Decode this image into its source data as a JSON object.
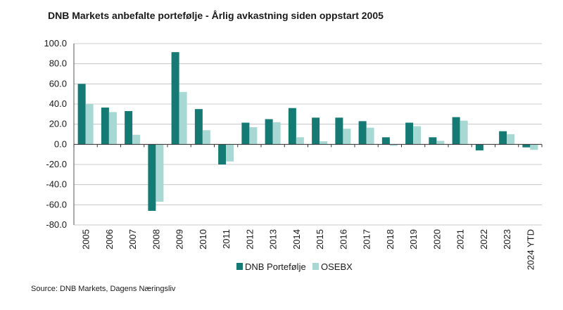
{
  "title": "DNB Markets anbefalte portefølje - Årlig avkastning siden oppstart 2005",
  "source": "Source: DNB Markets, Dagens Næringsliv",
  "chart_data": {
    "type": "bar",
    "title": "DNB Markets anbefalte portefølje - Årlig avkastning siden oppstart 2005",
    "xlabel": "",
    "ylabel": "",
    "categories": [
      "2005",
      "2006",
      "2007",
      "2008",
      "2009",
      "2010",
      "2011",
      "2012",
      "2013",
      "2014",
      "2015",
      "2016",
      "2017",
      "2018",
      "2019",
      "2020",
      "2021",
      "2022",
      "2023",
      "2024 YTD"
    ],
    "series": [
      {
        "name": "DNB Portefølje",
        "color": "#157a73",
        "values": [
          60,
          36.5,
          33,
          -66,
          91.5,
          35,
          -20,
          21.5,
          25,
          36,
          26.5,
          26.5,
          23,
          7,
          21.5,
          7,
          27,
          -6,
          13,
          -3
        ]
      },
      {
        "name": "OSEBX",
        "color": "#a8d8d3",
        "values": [
          40,
          32,
          9.5,
          -57,
          52,
          14,
          -17,
          17,
          22,
          7,
          3,
          15.5,
          16.5,
          -1.5,
          18,
          3.5,
          23.5,
          0,
          10,
          -5.5
        ]
      }
    ],
    "ylim": [
      -80,
      100
    ],
    "yticks": [
      "100.0",
      "80.0",
      "60.0",
      "40.0",
      "20.0",
      "0.0",
      "-20.0",
      "-40.0",
      "-60.0",
      "-80.0"
    ],
    "ytick_values": [
      100,
      80,
      60,
      40,
      20,
      0,
      -20,
      -40,
      -60,
      -80
    ],
    "grid": true,
    "legend": "bottom-center"
  }
}
